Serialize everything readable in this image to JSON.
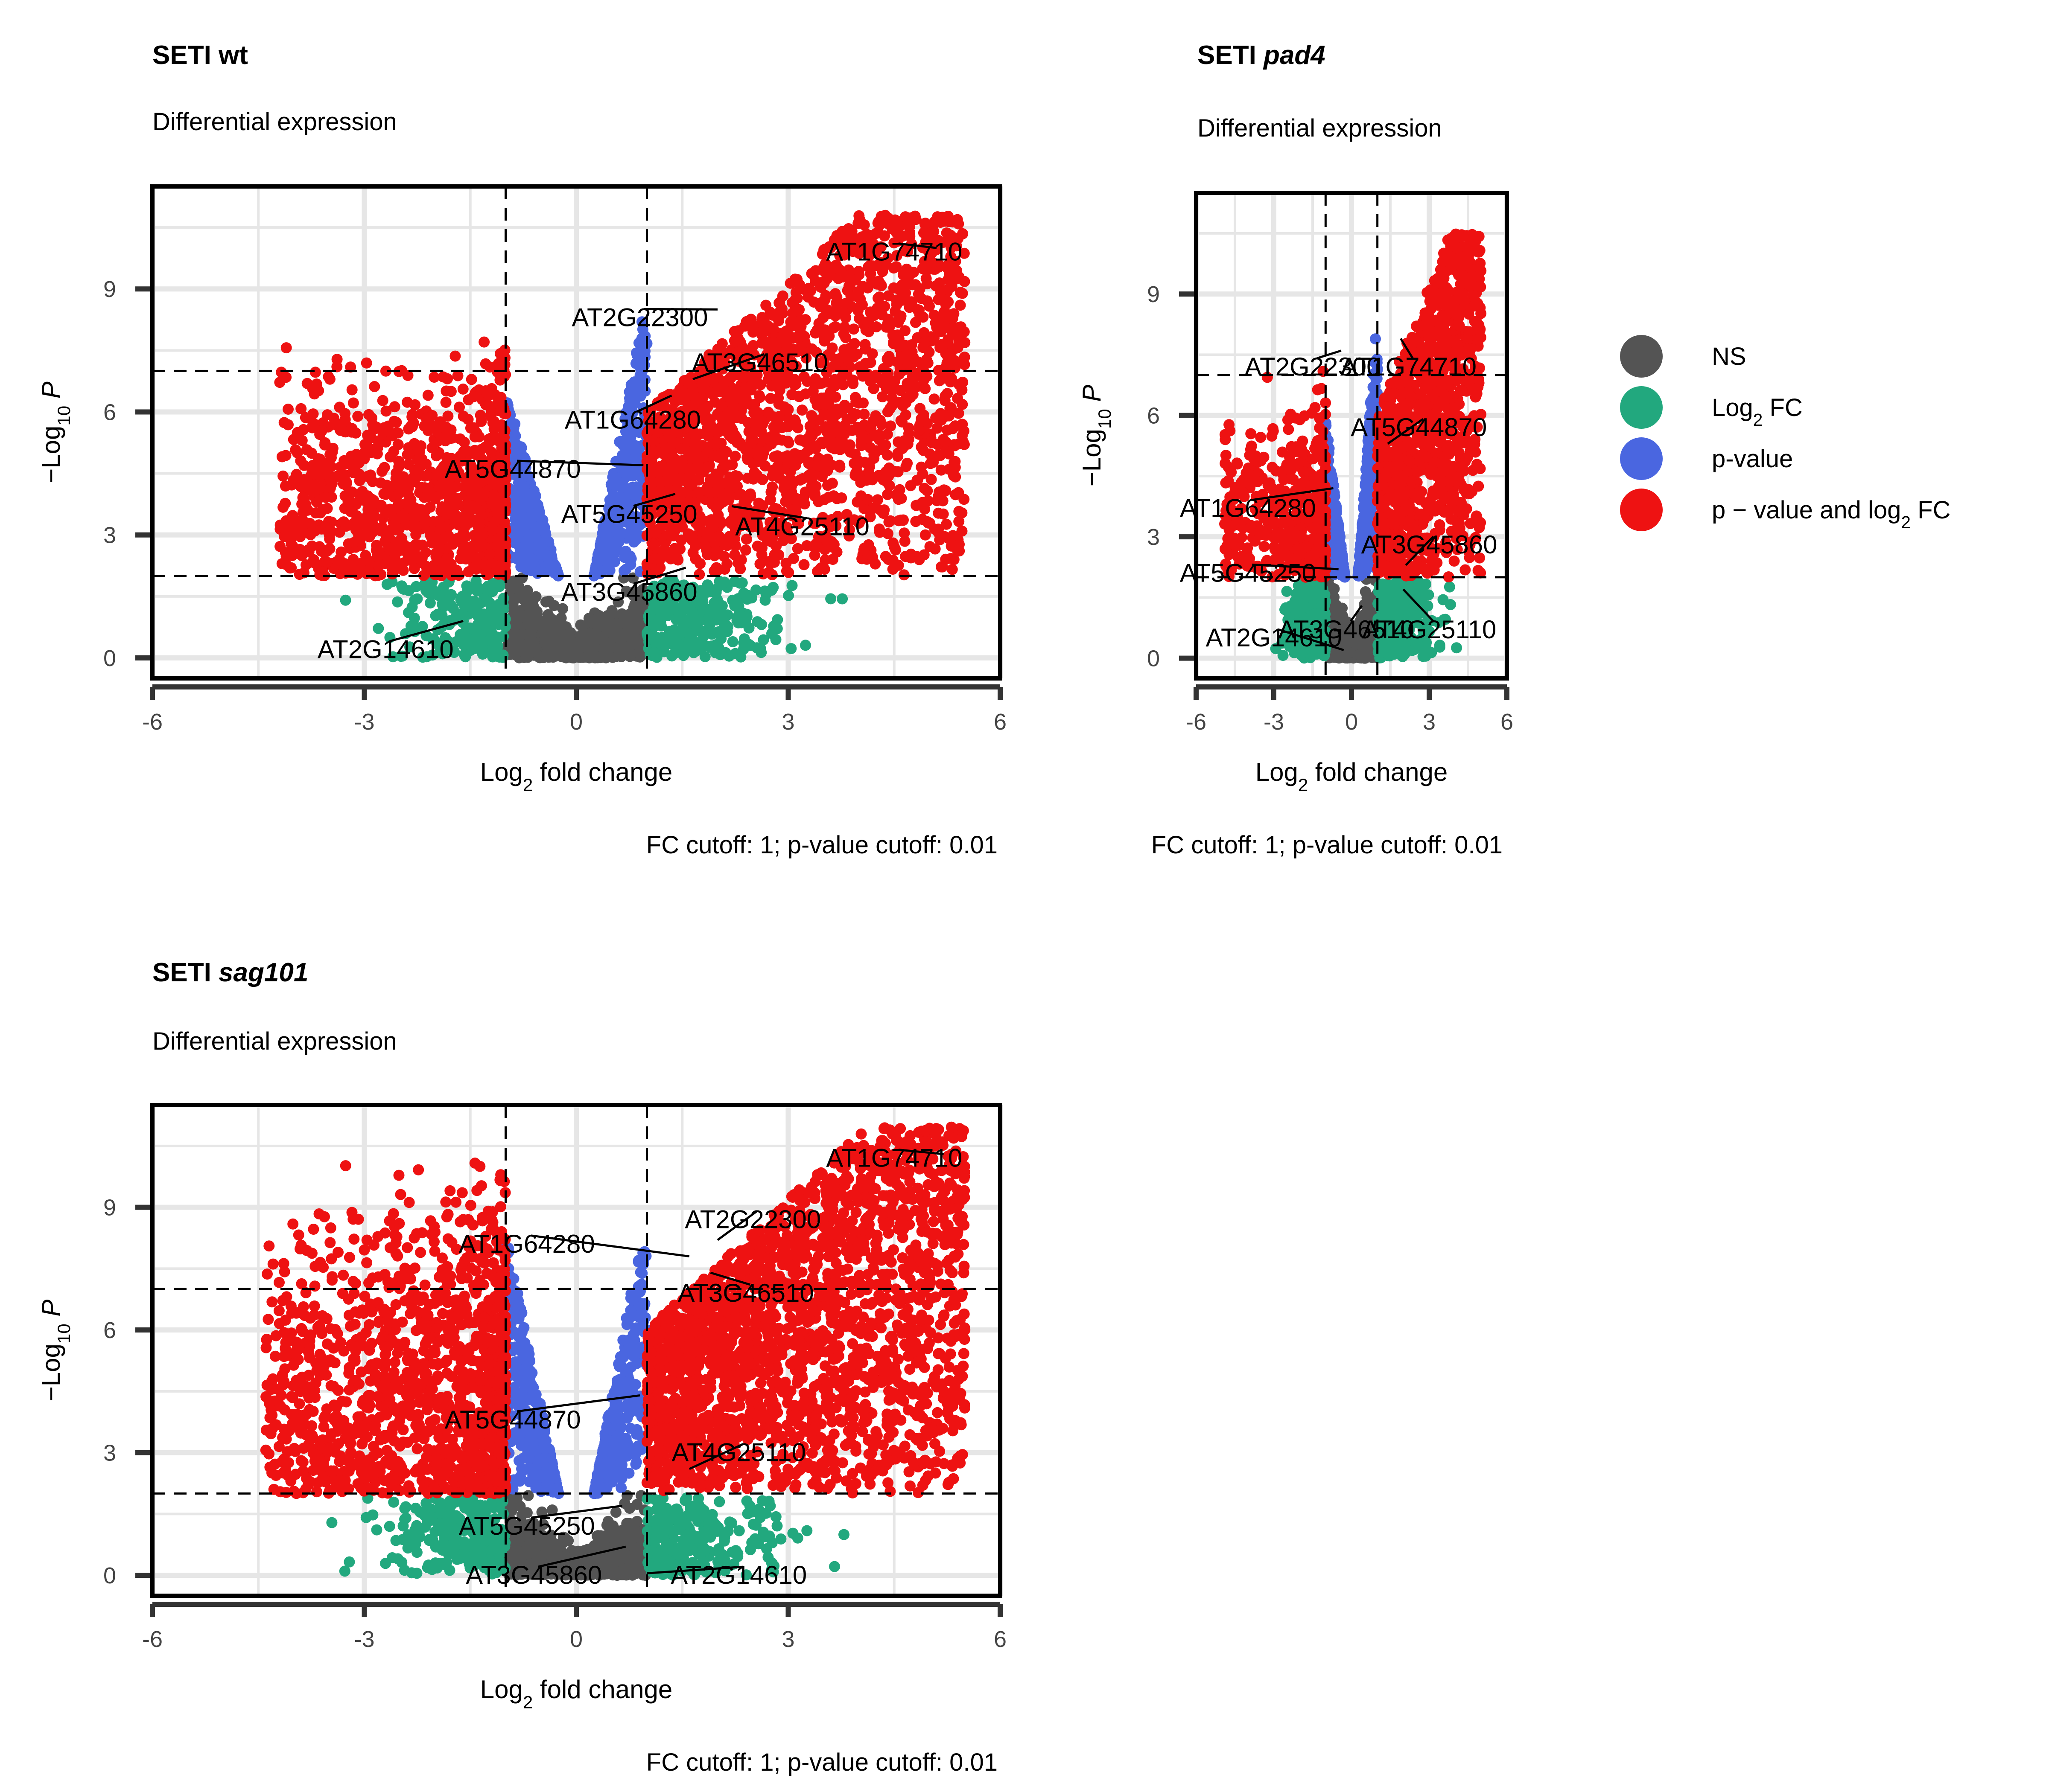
{
  "legend": {
    "items": [
      {
        "key": "NS",
        "label": "NS",
        "color": "#545454"
      },
      {
        "key": "FC",
        "label": "Log",
        "sub": "2",
        "suffix": " FC",
        "color": "#22A87E"
      },
      {
        "key": "P",
        "label": "p-value",
        "color": "#4A66E0"
      },
      {
        "key": "PFC",
        "label": "p − value and log",
        "sub": "2",
        "suffix": " FC",
        "color": "#EE1212"
      }
    ]
  },
  "chart_data": [
    {
      "type": "scatter",
      "title_bold": "SETI ",
      "title_italic": "",
      "title_tail": "wt",
      "subtitle": "Differential expression",
      "caption": "FC cutoff: 1; p-value cutoff: 0.01",
      "xlabel": {
        "main": "Log",
        "sub": "2",
        "tail": " fold change"
      },
      "ylabel": {
        "main": "−Log",
        "sub": "10",
        "tail": " P"
      },
      "xlim": [
        -6,
        6
      ],
      "ylim": [
        -0.5,
        11.5
      ],
      "xticks": [
        "-6",
        "-3",
        "0",
        "3",
        "6"
      ],
      "yticks": [
        "0",
        "3",
        "6",
        "9"
      ],
      "cutoffs": {
        "fc": 1,
        "neglog10p": 2,
        "upper_line": 7
      },
      "distribution": {
        "left_min": -3.0,
        "right_max": 5.5,
        "left_ymax": 8.0,
        "right_ymax": 10.8,
        "n_right": 1900,
        "n_left": 1050
      },
      "labels": [
        {
          "text": "AT1G74710",
          "x": 5.1,
          "y": 10.0,
          "tx": 4.5,
          "ty": 9.9
        },
        {
          "text": "AT2G22300",
          "x": 2.0,
          "y": 8.5,
          "tx": 0.9,
          "ty": 8.3
        },
        {
          "text": "AT3G46510",
          "x": 1.65,
          "y": 6.8,
          "tx": 2.6,
          "ty": 7.2
        },
        {
          "text": "AT1G64280",
          "x": 1.35,
          "y": 6.4,
          "tx": 0.8,
          "ty": 5.8
        },
        {
          "text": "AT5G44870",
          "x": 0.95,
          "y": 4.7,
          "tx": -0.9,
          "ty": 4.6
        },
        {
          "text": "AT5G45250",
          "x": 1.4,
          "y": 4.0,
          "tx": 0.75,
          "ty": 3.5
        },
        {
          "text": "AT4G25110",
          "x": 2.2,
          "y": 3.7,
          "tx": 3.2,
          "ty": 3.2
        },
        {
          "text": "AT3G45860",
          "x": 1.55,
          "y": 2.2,
          "tx": 0.75,
          "ty": 1.6
        },
        {
          "text": "AT2G14610",
          "x": -1.6,
          "y": 0.9,
          "tx": -2.7,
          "ty": 0.2
        }
      ]
    },
    {
      "type": "scatter",
      "title_bold": "SETI ",
      "title_italic": "pad4",
      "title_tail": "",
      "subtitle": "Differential expression",
      "caption": "FC cutoff: 1; p-value cutoff: 0.01",
      "xlabel": {
        "main": "Log",
        "sub": "2",
        "tail": " fold change"
      },
      "ylabel": {
        "main": "−Log",
        "sub": "10",
        "tail": " P"
      },
      "xlim": [
        -6,
        6
      ],
      "ylim": [
        -0.5,
        11.5
      ],
      "xticks": [
        "-6",
        "-3",
        "0",
        "3",
        "6"
      ],
      "yticks": [
        "0",
        "3",
        "6",
        "9"
      ],
      "cutoffs": {
        "fc": 1,
        "neglog10p": 2,
        "upper_line": 7
      },
      "distribution": {
        "left_min": -3.7,
        "right_max": 5.0,
        "left_ymax": 7.2,
        "right_ymax": 10.5,
        "n_right": 1100,
        "n_left": 450
      },
      "labels": [
        {
          "text": "AT2G22300",
          "x": -0.4,
          "y": 7.6,
          "tx": -1.5,
          "ty": 7.2
        },
        {
          "text": "AT1G74710",
          "x": 1.9,
          "y": 7.9,
          "tx": 2.2,
          "ty": 7.2
        },
        {
          "text": "AT5G44870",
          "x": 1.4,
          "y": 5.3,
          "tx": 2.6,
          "ty": 5.7
        },
        {
          "text": "AT1G64280",
          "x": -0.7,
          "y": 4.2,
          "tx": -4.0,
          "ty": 3.7
        },
        {
          "text": "AT3G45860",
          "x": 2.1,
          "y": 2.3,
          "tx": 3.0,
          "ty": 2.8
        },
        {
          "text": "AT5G45250",
          "x": -0.5,
          "y": 2.2,
          "tx": -4.0,
          "ty": 2.1
        },
        {
          "text": "AT3G46510",
          "x": 0.4,
          "y": 1.3,
          "tx": -0.2,
          "ty": 0.7
        },
        {
          "text": "AT4G25110",
          "x": 2.0,
          "y": 1.7,
          "tx": 3.0,
          "ty": 0.7
        },
        {
          "text": "AT2G14610",
          "x": -0.3,
          "y": 0.2,
          "tx": -3.0,
          "ty": 0.5
        }
      ]
    },
    {
      "type": "scatter",
      "title_bold": "SETI ",
      "title_italic": "sag101",
      "title_tail": "",
      "subtitle": "Differential expression",
      "caption": "FC cutoff: 1; p-value cutoff: 0.01",
      "xlabel": {
        "main": "Log",
        "sub": "2",
        "tail": " fold change"
      },
      "ylabel": {
        "main": "−Log",
        "sub": "10",
        "tail": " P"
      },
      "xlim": [
        -6,
        6
      ],
      "ylim": [
        -0.5,
        11.5
      ],
      "xticks": [
        "-6",
        "-3",
        "0",
        "3",
        "6"
      ],
      "yticks": [
        "0",
        "3",
        "6",
        "9"
      ],
      "cutoffs": {
        "fc": 1,
        "neglog10p": 2,
        "upper_line": 7
      },
      "distribution": {
        "left_min": -3.2,
        "right_max": 5.5,
        "left_ymax": 10.2,
        "right_ymax": 11.0,
        "n_right": 2100,
        "n_left": 1300
      },
      "labels": [
        {
          "text": "AT1G74710",
          "x": 5.2,
          "y": 10.3,
          "tx": 4.5,
          "ty": 10.2
        },
        {
          "text": "AT2G22300",
          "x": 2.0,
          "y": 8.2,
          "tx": 2.5,
          "ty": 8.7
        },
        {
          "text": "AT1G64280",
          "x": 1.6,
          "y": 7.8,
          "tx": -0.7,
          "ty": 8.1
        },
        {
          "text": "AT3G46510",
          "x": 1.9,
          "y": 7.4,
          "tx": 2.4,
          "ty": 6.9
        },
        {
          "text": "AT5G44870",
          "x": 0.9,
          "y": 4.4,
          "tx": -0.9,
          "ty": 3.8
        },
        {
          "text": "AT4G25110",
          "x": 1.6,
          "y": 2.6,
          "tx": 2.3,
          "ty": 3.0
        },
        {
          "text": "AT5G45250",
          "x": 0.65,
          "y": 1.7,
          "tx": -0.7,
          "ty": 1.2
        },
        {
          "text": "AT3G45860",
          "x": 0.7,
          "y": 0.7,
          "tx": -0.6,
          "ty": 0.0
        },
        {
          "text": "AT2G14610",
          "x": 1.0,
          "y": 0.05,
          "tx": 2.3,
          "ty": 0.0
        }
      ]
    }
  ]
}
